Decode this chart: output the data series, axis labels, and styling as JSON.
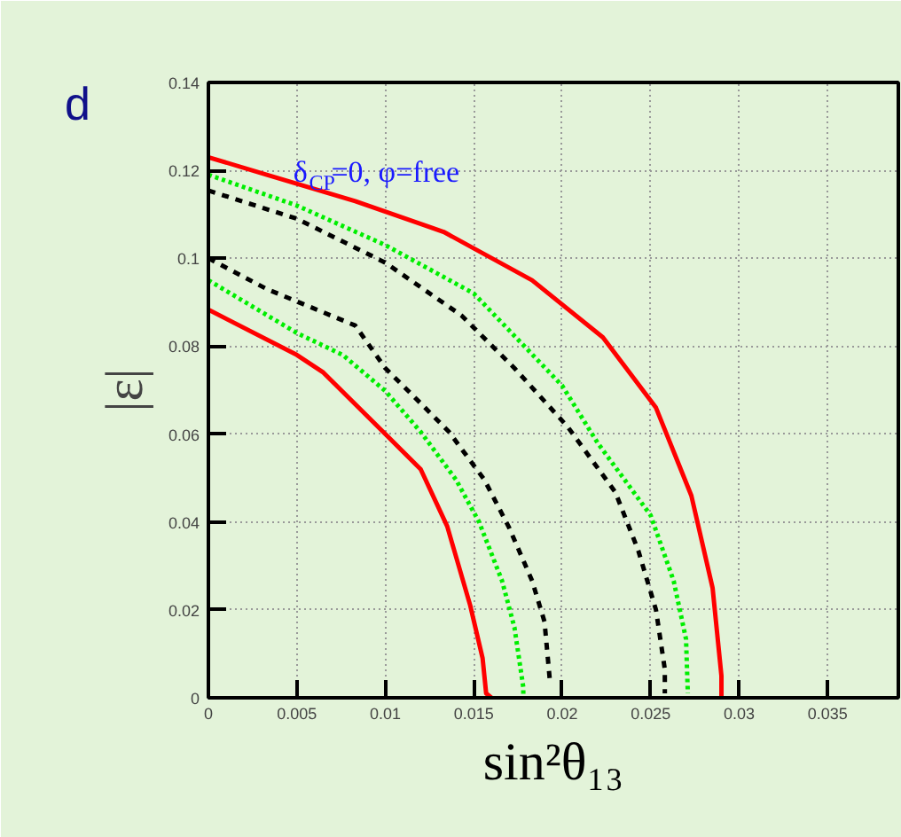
{
  "chart_data": {
    "type": "line",
    "xlabel": "sin²θ₁₃",
    "ylabel": "|ε|",
    "annotations": [
      "δ$_{CP}$=0, φ=free",
      "d"
    ],
    "xlim": [
      0,
      0.039
    ],
    "ylim": [
      0,
      0.14
    ],
    "xticks": [
      0,
      0.005,
      0.01,
      0.015,
      0.02,
      0.025,
      0.03,
      0.035
    ],
    "yticks": [
      0,
      0.02,
      0.04,
      0.06,
      0.08,
      0.1,
      0.12,
      0.14
    ],
    "grid": true,
    "marker": "none",
    "series": [
      {
        "color": "#ff0000",
        "line_style": "solid",
        "x": [
          0,
          0.0033,
          0.0083,
          0.0133,
          0.0183,
          0.0223,
          0.0253,
          0.0273,
          0.0285,
          0.029,
          0.029
        ],
        "values": [
          0.123,
          0.119,
          0.113,
          0.106,
          0.095,
          0.082,
          0.066,
          0.046,
          0.025,
          0.005,
          0
        ]
      },
      {
        "color": "#ff0000",
        "line_style": "solid",
        "x": [
          0,
          0.005,
          0.0065,
          0.01,
          0.012,
          0.0135,
          0.0148,
          0.0155,
          0.0157,
          0.016
        ],
        "values": [
          0.0883,
          0.078,
          0.074,
          0.06,
          0.052,
          0.039,
          0.021,
          0.009,
          0.001,
          0
        ]
      },
      {
        "color": "#00ee00",
        "line_style": "dotted",
        "x": [
          0,
          0.005,
          0.01,
          0.015,
          0.02,
          0.022,
          0.025,
          0.0263,
          0.027,
          0.0271
        ],
        "values": [
          0.119,
          0.112,
          0.103,
          0.092,
          0.071,
          0.058,
          0.0415,
          0.0266,
          0.0133,
          0.001
        ]
      },
      {
        "color": "#00ee00",
        "line_style": "dotted",
        "x": [
          0,
          0.005,
          0.0076,
          0.01,
          0.012,
          0.014,
          0.0153,
          0.0166,
          0.0173,
          0.0178,
          0.0178
        ],
        "values": [
          0.095,
          0.083,
          0.078,
          0.0698,
          0.0605,
          0.0496,
          0.04,
          0.0266,
          0.016,
          0.0024,
          0
        ]
      },
      {
        "color": "#000000",
        "line_style": "dashed",
        "x": [
          0,
          0.005,
          0.01,
          0.0143,
          0.0173,
          0.0203,
          0.023,
          0.0243,
          0.0253,
          0.0258,
          0.0258
        ],
        "values": [
          0.1154,
          0.109,
          0.099,
          0.087,
          0.075,
          0.0617,
          0.0468,
          0.0335,
          0.02,
          0.0065,
          0.001
        ]
      },
      {
        "color": "#000000",
        "line_style": "dashed",
        "x": [
          0,
          0.0033,
          0.0083,
          0.01,
          0.012,
          0.0136,
          0.0156,
          0.017,
          0.0183,
          0.019,
          0.0193
        ],
        "values": [
          0.1,
          0.093,
          0.0847,
          0.075,
          0.067,
          0.0605,
          0.0496,
          0.0387,
          0.0266,
          0.0173,
          0.004
        ]
      }
    ]
  }
}
